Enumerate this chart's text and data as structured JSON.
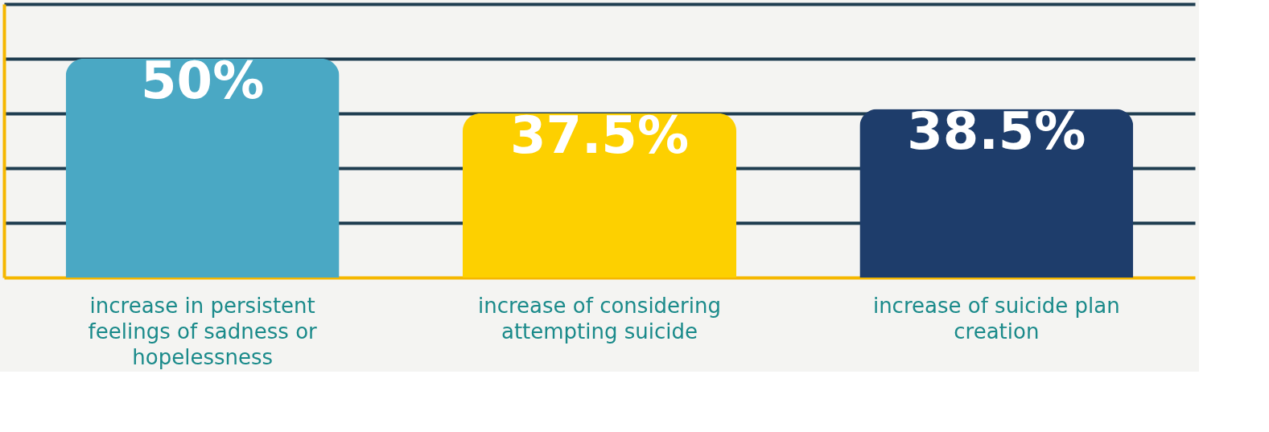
{
  "chart_data": {
    "type": "bar",
    "categories": [
      "increase in persistent feelings of sadness or hopelessness",
      "increase of considering attempting suicide",
      "increase of suicide plan creation"
    ],
    "values": [
      50,
      37.5,
      38.5
    ],
    "value_labels": [
      "50%",
      "37.5%",
      "38.5%"
    ],
    "colors": [
      "#4aa8c4",
      "#fdd000",
      "#1e3d6b"
    ],
    "ylim": [
      0,
      62.5
    ],
    "yticks": [
      {
        "value": 12.5,
        "label": null
      },
      {
        "value": 25,
        "label": null
      },
      {
        "value": 37.5,
        "label": null
      },
      {
        "value": 50,
        "label": null
      },
      {
        "value": 62.5,
        "label": null
      }
    ],
    "grid": "y",
    "tick_labels": "x"
  }
}
